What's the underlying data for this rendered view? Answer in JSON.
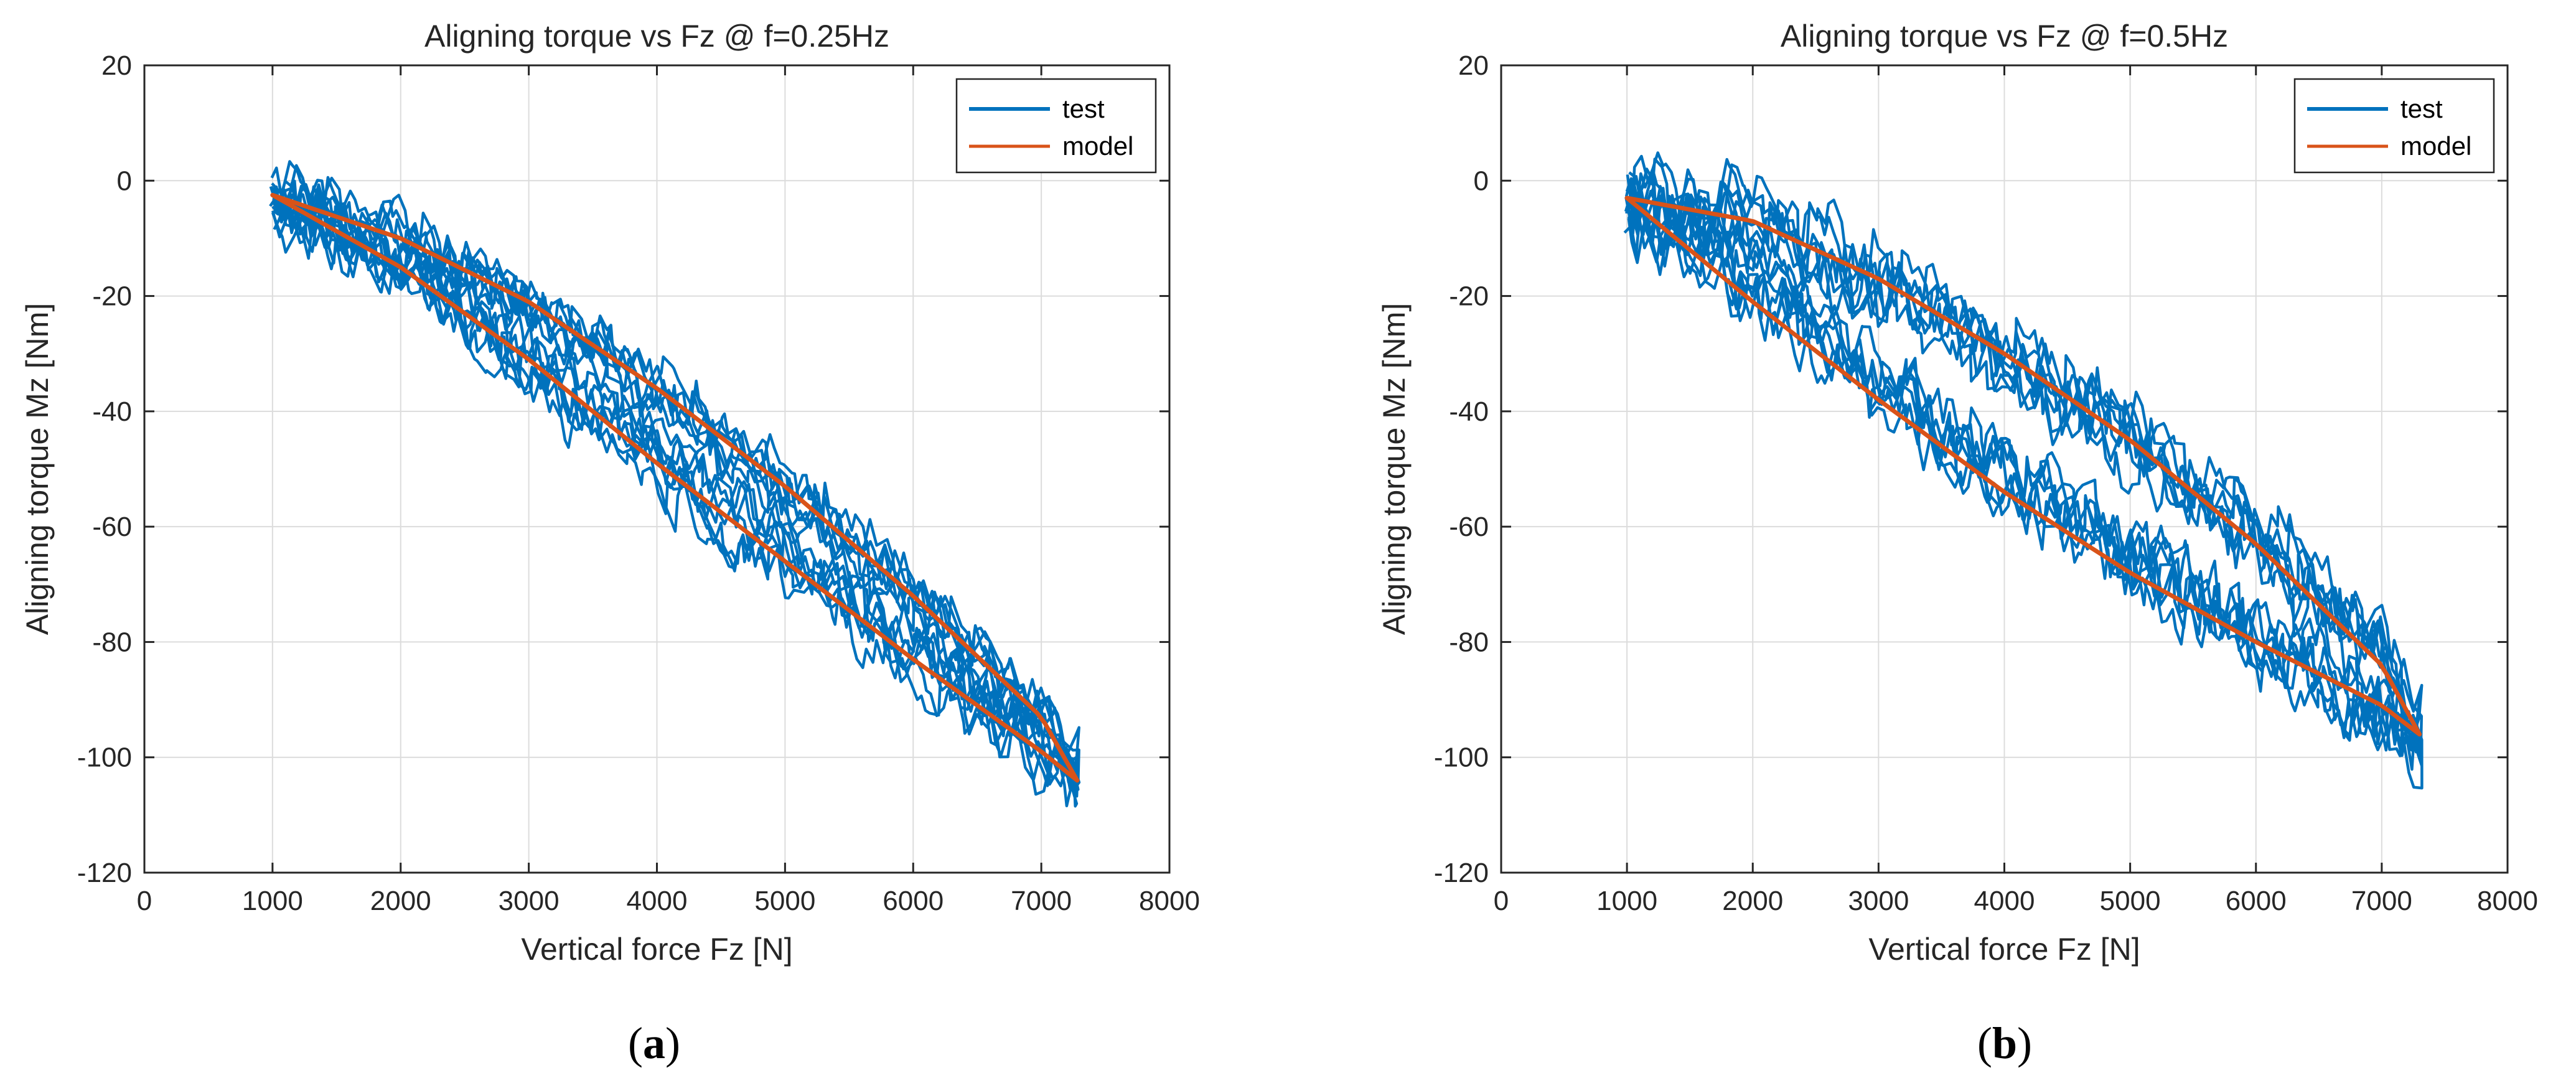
{
  "chart_data": [
    {
      "type": "line",
      "title": "Aligning torque vs Fz @ f=0.25Hz",
      "xlabel": "Vertical force Fz [N]",
      "ylabel": "Aligning torque Mz [Nm]",
      "xlim": [
        0,
        8000
      ],
      "ylim": [
        -120,
        20
      ],
      "xticks": [
        0,
        1000,
        2000,
        3000,
        4000,
        5000,
        6000,
        7000,
        8000
      ],
      "yticks": [
        -120,
        -100,
        -80,
        -60,
        -40,
        -20,
        0,
        20
      ],
      "grid": true,
      "legend_position": "top-right",
      "caption_letter": "a",
      "series": [
        {
          "name": "test",
          "color": "#0072BD",
          "description": "noisy hysteresis loops",
          "upper_branch": {
            "x": [
              1000,
              2000,
              3000,
              4000,
              5000,
              6000,
              7000,
              7280
            ],
            "y": [
              -2,
              -10,
              -21,
              -36,
              -52,
              -71,
              -93,
              -102
            ]
          },
          "lower_branch": {
            "x": [
              1000,
              2000,
              3000,
              4000,
              5000,
              6000,
              7000,
              7280
            ],
            "y": [
              -4,
              -15,
              -32,
              -49,
              -65,
              -82,
              -98,
              -103
            ]
          },
          "noise_amplitude": 4
        },
        {
          "name": "model",
          "color": "#D95319",
          "upper_branch": {
            "x": [
              1000,
              2000,
              3000,
              4000,
              5000,
              6000,
              7000,
              7280
            ],
            "y": [
              -2.5,
              -10,
              -21,
              -36,
              -53,
              -72,
              -93,
              -104
            ]
          },
          "lower_branch": {
            "x": [
              1000,
              2000,
              3000,
              4000,
              5000,
              6000,
              7000,
              7280
            ],
            "y": [
              -2.5,
              -15,
              -31,
              -49,
              -66,
              -83,
              -99,
              -104
            ]
          }
        }
      ]
    },
    {
      "type": "line",
      "title": "Aligning torque vs Fz @ f=0.5Hz",
      "xlabel": "Vertical force Fz [N]",
      "ylabel": "Aligning torque Mz [Nm]",
      "xlim": [
        0,
        8000
      ],
      "ylim": [
        -120,
        20
      ],
      "xticks": [
        0,
        1000,
        2000,
        3000,
        4000,
        5000,
        6000,
        7000,
        8000
      ],
      "yticks": [
        -120,
        -100,
        -80,
        -60,
        -40,
        -20,
        0,
        20
      ],
      "grid": true,
      "legend_position": "top-right",
      "caption_letter": "b",
      "series": [
        {
          "name": "test",
          "color": "#0072BD",
          "description": "noisy hysteresis loops",
          "upper_branch": {
            "x": [
              1000,
              2000,
              3000,
              4000,
              5000,
              6000,
              7000,
              7300
            ],
            "y": [
              -2,
              -7,
              -17,
              -30,
              -45,
              -62,
              -82,
              -95
            ]
          },
          "lower_branch": {
            "x": [
              1000,
              2000,
              3000,
              4000,
              5000,
              6000,
              7000,
              7300
            ],
            "y": [
              -4,
              -18,
              -35,
              -52,
              -66,
              -79,
              -92,
              -97
            ]
          },
          "noise_amplitude": 5
        },
        {
          "name": "model",
          "color": "#D95319",
          "upper_branch": {
            "x": [
              1000,
              2000,
              3000,
              4000,
              5000,
              6000,
              7000,
              7300
            ],
            "y": [
              -3,
              -7,
              -17,
              -30,
              -45,
              -63,
              -84,
              -96
            ]
          },
          "lower_branch": {
            "x": [
              1000,
              2000,
              3000,
              4000,
              5000,
              6000,
              7000,
              7300
            ],
            "y": [
              -3,
              -21,
              -38,
              -54,
              -68,
              -80,
              -91,
              -96
            ]
          }
        }
      ]
    }
  ]
}
